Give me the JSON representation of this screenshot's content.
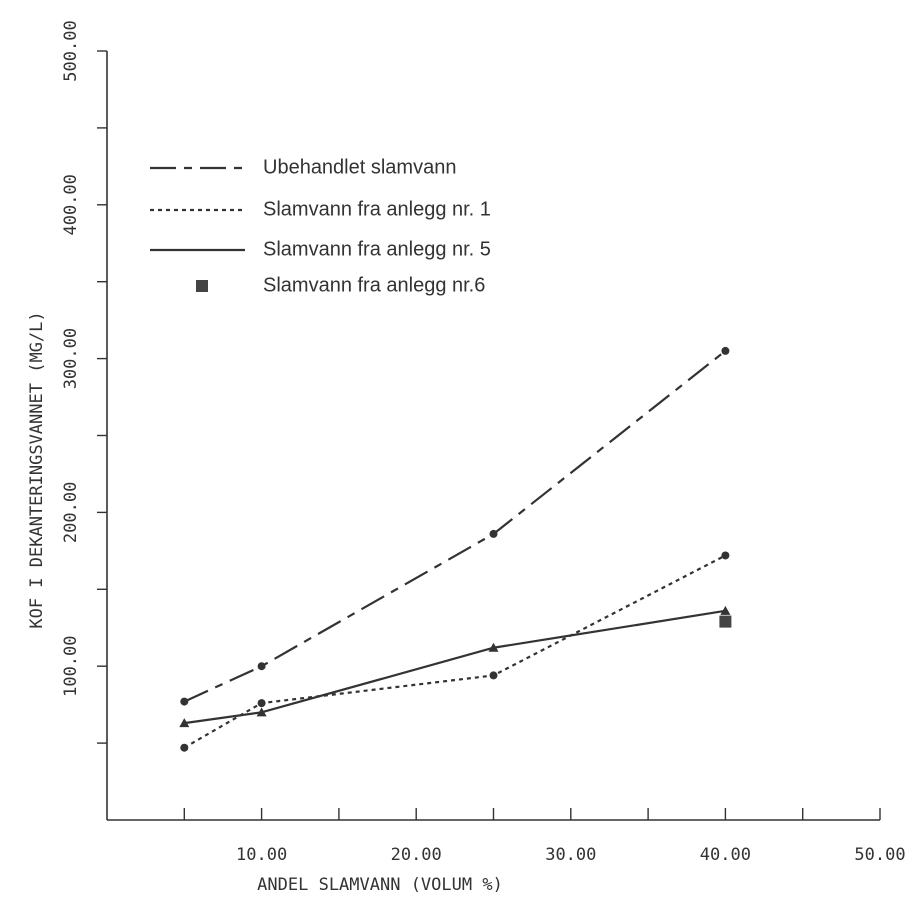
{
  "chart_data": {
    "type": "line",
    "x_label": "ANDEL SLAMVANN (VOLUM %)",
    "y_label": "KOF I DEKANTERINGSVANNET (MG/L)",
    "xlim": [
      0,
      50
    ],
    "ylim": [
      0,
      500
    ],
    "xticks": [
      {
        "value": 5,
        "label": null
      },
      {
        "value": 10,
        "label": "10.00"
      },
      {
        "value": 15,
        "label": null
      },
      {
        "value": 20,
        "label": "20.00"
      },
      {
        "value": 25,
        "label": null
      },
      {
        "value": 30,
        "label": "30.00"
      },
      {
        "value": 35,
        "label": null
      },
      {
        "value": 40,
        "label": "40.00"
      },
      {
        "value": 45,
        "label": null
      },
      {
        "value": 50,
        "label": "50.00"
      }
    ],
    "yticks": [
      {
        "value": 50,
        "label": null
      },
      {
        "value": 100,
        "label": "100.00"
      },
      {
        "value": 150,
        "label": null
      },
      {
        "value": 200,
        "label": "200.00"
      },
      {
        "value": 250,
        "label": null
      },
      {
        "value": 300,
        "label": "300.00"
      },
      {
        "value": 350,
        "label": null
      },
      {
        "value": 400,
        "label": "400.00"
      },
      {
        "value": 450,
        "label": null
      },
      {
        "value": 500,
        "label": "500.00"
      }
    ],
    "x": [
      5,
      10,
      25,
      40
    ],
    "series": [
      {
        "name": "Ubehandlet slamvann",
        "color": "#333333",
        "dash": "long-dash",
        "marker": "circle",
        "values": [
          77,
          100,
          186,
          305
        ]
      },
      {
        "name": "Slamvann fra anlegg nr. 1",
        "color": "#333333",
        "dash": "dotted",
        "marker": "circle",
        "values": [
          47,
          76,
          94,
          172
        ]
      },
      {
        "name": "Slamvann fra anlegg nr. 5",
        "color": "#333333",
        "dash": "solid",
        "marker": "triangle",
        "values": [
          63,
          70,
          112,
          136
        ]
      },
      {
        "name": "Slamvann fra anlegg nr.6",
        "color": "#444444",
        "dash": "none",
        "marker": "square",
        "values": [
          null,
          null,
          null,
          129
        ]
      }
    ]
  }
}
